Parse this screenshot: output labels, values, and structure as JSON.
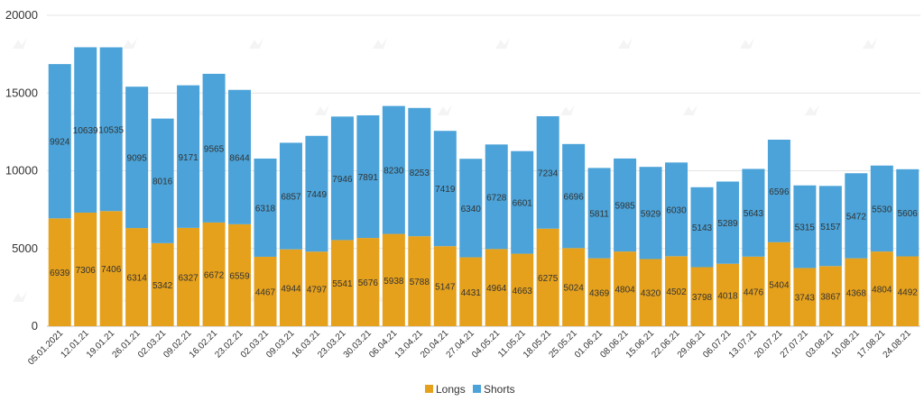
{
  "chart_data": {
    "type": "bar",
    "stacked": true,
    "categories": [
      "05.01.2021",
      "12.01.21",
      "19.01.21",
      "26.01.21",
      "02.03.21",
      "09.02.21",
      "16.02.21",
      "23.02.21",
      "02.03.21",
      "09.03.21",
      "16.03.21",
      "23.03.21",
      "30.03.21",
      "06.04.21",
      "13.04.21",
      "20.04.21",
      "27.04.21",
      "04.05.21",
      "11.05.21",
      "18.05.21",
      "25.05.21",
      "01.06.21",
      "08.06.21",
      "15.06.21",
      "22.06.21",
      "29.06.21",
      "06.07.21",
      "13.07.21",
      "20.07.21",
      "27.07.21",
      "03.08.21",
      "10.08.21",
      "17.08.21",
      "24.08.21"
    ],
    "series": [
      {
        "name": "Longs",
        "color": "#E6A11C",
        "values": [
          6939,
          7306,
          7406,
          6314,
          5342,
          6327,
          6672,
          6559,
          4467,
          4944,
          4797,
          5541,
          5676,
          5938,
          5788,
          5147,
          4431,
          4964,
          4663,
          6275,
          5024,
          4369,
          4804,
          4320,
          4502,
          3798,
          4018,
          4476,
          5404,
          3743,
          3867,
          4368,
          4804,
          4492
        ]
      },
      {
        "name": "Shorts",
        "color": "#4BA3D9",
        "values": [
          9924,
          10639,
          10535,
          9095,
          8016,
          9171,
          9565,
          8644,
          6318,
          6857,
          7449,
          7946,
          7891,
          8230,
          8253,
          7419,
          6340,
          6728,
          6601,
          7234,
          6696,
          5811,
          5985,
          5929,
          6030,
          5143,
          5289,
          5643,
          6596,
          5315,
          5157,
          5472,
          5530,
          5606
        ]
      }
    ],
    "ylim": [
      0,
      20000
    ],
    "yticks": [
      0,
      5000,
      10000,
      15000,
      20000
    ],
    "title": "",
    "xlabel": "",
    "ylabel": "",
    "legend_position": "bottom-center",
    "grid": true
  },
  "legend": {
    "longs_label": "Longs",
    "shorts_label": "Shorts"
  },
  "watermark_icon": "logo-icon"
}
